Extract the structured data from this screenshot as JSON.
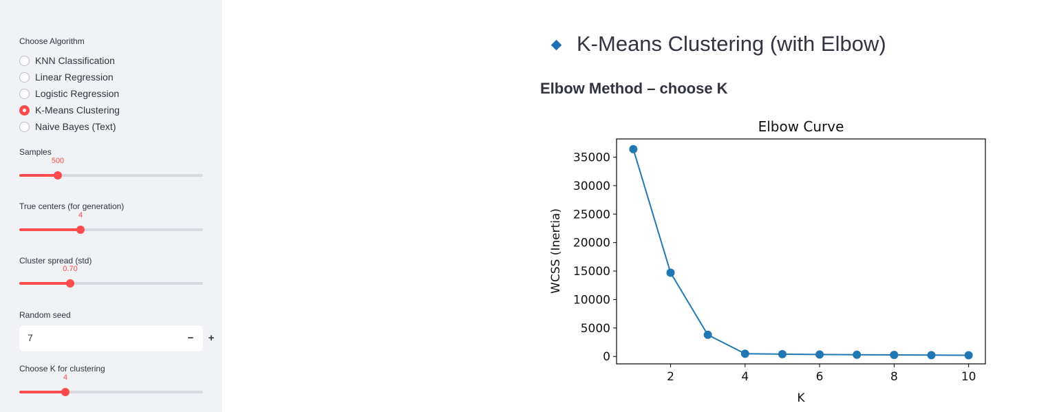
{
  "sidebar": {
    "algorithm_label": "Choose Algorithm",
    "algorithms": [
      {
        "label": "KNN Classification",
        "selected": false
      },
      {
        "label": "Linear Regression",
        "selected": false
      },
      {
        "label": "Logistic Regression",
        "selected": false
      },
      {
        "label": "K-Means Clustering",
        "selected": true
      },
      {
        "label": "Naive Bayes (Text)",
        "selected": false
      }
    ],
    "samples": {
      "label": "Samples",
      "value": "500",
      "fraction": 0.21
    },
    "true_centers": {
      "label": "True centers (for generation)",
      "value": "4",
      "fraction": 0.334
    },
    "cluster_spread": {
      "label": "Cluster spread (std)",
      "value": "0.70",
      "fraction": 0.278
    },
    "random_seed": {
      "label": "Random seed",
      "value": "7",
      "minus": "−",
      "plus": "+"
    },
    "choose_k": {
      "label": "Choose K for clustering",
      "value": "4",
      "fraction": 0.25
    }
  },
  "main": {
    "title": "K-Means Clustering (with Elbow)",
    "subtitle": "Elbow Method – choose K"
  },
  "colors": {
    "accent": "#ff4b4b",
    "series": "#1f77b4",
    "diamond": "#1f6fb5"
  },
  "chart_data": {
    "type": "line",
    "title": "Elbow Curve",
    "xlabel": "K",
    "ylabel": "WCSS (Inertia)",
    "x": [
      1,
      2,
      3,
      4,
      5,
      6,
      7,
      8,
      9,
      10
    ],
    "series": [
      {
        "values": [
          36400,
          14700,
          3800,
          480,
          400,
          340,
          300,
          270,
          230,
          210
        ]
      }
    ],
    "xlim": [
      0.55,
      10.45
    ],
    "ylim": [
      -1300,
      38200
    ],
    "xticks": [
      2,
      4,
      6,
      8,
      10
    ],
    "yticks": [
      0,
      5000,
      10000,
      15000,
      20000,
      25000,
      30000,
      35000
    ],
    "grid": false,
    "marker": "circle"
  }
}
